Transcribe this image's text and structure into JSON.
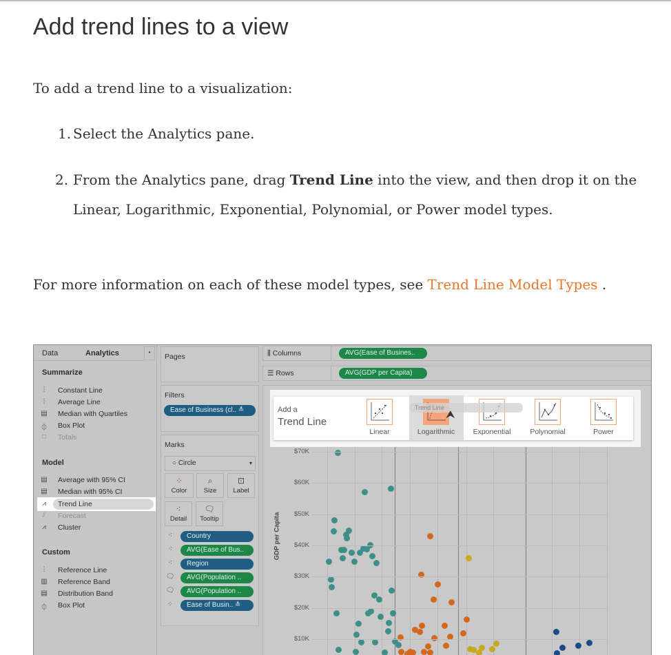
{
  "title": "Add trend lines to a view",
  "intro": "To add a trend line to a visualization:",
  "steps": [
    {
      "num": "1.",
      "text": "Select the Analytics pane."
    },
    {
      "num": "2.",
      "text_before": "From the Analytics pane, drag ",
      "bold": "Trend Line",
      "text_after": " into the view, and then drop it on the Linear, Logarithmic, Exponential, Polynomial, or Power model types."
    }
  ],
  "more_info": {
    "text": "For more information on each of these model types, see ",
    "link": "Trend Line Model Types",
    "suffix": " ."
  },
  "colors": {
    "link": "#e8762c",
    "teal": "#3e8f87",
    "orange": "#d2691e",
    "yellow": "#c8a923",
    "blue": "#1d4a86",
    "pill_blue": "#1f5d82",
    "pill_green": "#1c8746"
  },
  "screenshot": {
    "tabs": {
      "data": "Data",
      "analytics": "Analytics"
    },
    "summarize": {
      "header": "Summarize",
      "items": [
        "Constant Line",
        "Average Line",
        "Median with Quartiles",
        "Box Plot",
        "Totals"
      ]
    },
    "model": {
      "header": "Model",
      "items": [
        "Average with 95% CI",
        "Median with 95% CI",
        "Trend Line",
        "Forecast",
        "Cluster"
      ]
    },
    "custom": {
      "header": "Custom",
      "items": [
        "Reference Line",
        "Reference Band",
        "Distribution Band",
        "Box Plot"
      ]
    },
    "pages": "Pages",
    "filters": {
      "label": "Filters",
      "pill": "Ease of Business (cl.."
    },
    "marks": {
      "label": "Marks",
      "mark_type": "Circle",
      "buttons": [
        "Color",
        "Size",
        "Label",
        "Detail",
        "Tooltip"
      ],
      "pills": [
        "Country",
        "AVG(Ease of Bus..",
        "Region",
        "AVG(Population ..",
        "AVG(Population ..",
        "Ease of Busin.."
      ]
    },
    "columns": {
      "label": "Columns",
      "pill": "AVG(Ease of Busines.."
    },
    "rows": {
      "label": "Rows",
      "pill": "AVG(GDP per Capita)"
    },
    "overlay": {
      "add_a": "Add a",
      "trend_line": "Trend Line",
      "drag_label": "Trend Line",
      "models": [
        "Linear",
        "Logarithmic",
        "Exponential",
        "Polynomial",
        "Power"
      ],
      "hovered": "Logarithmic"
    },
    "y_axis": {
      "label": "GDP per Capita",
      "ticks": [
        "$70K",
        "$60K",
        "$50K",
        "$40K",
        "$30K",
        "$20K",
        "$10K"
      ]
    }
  }
}
